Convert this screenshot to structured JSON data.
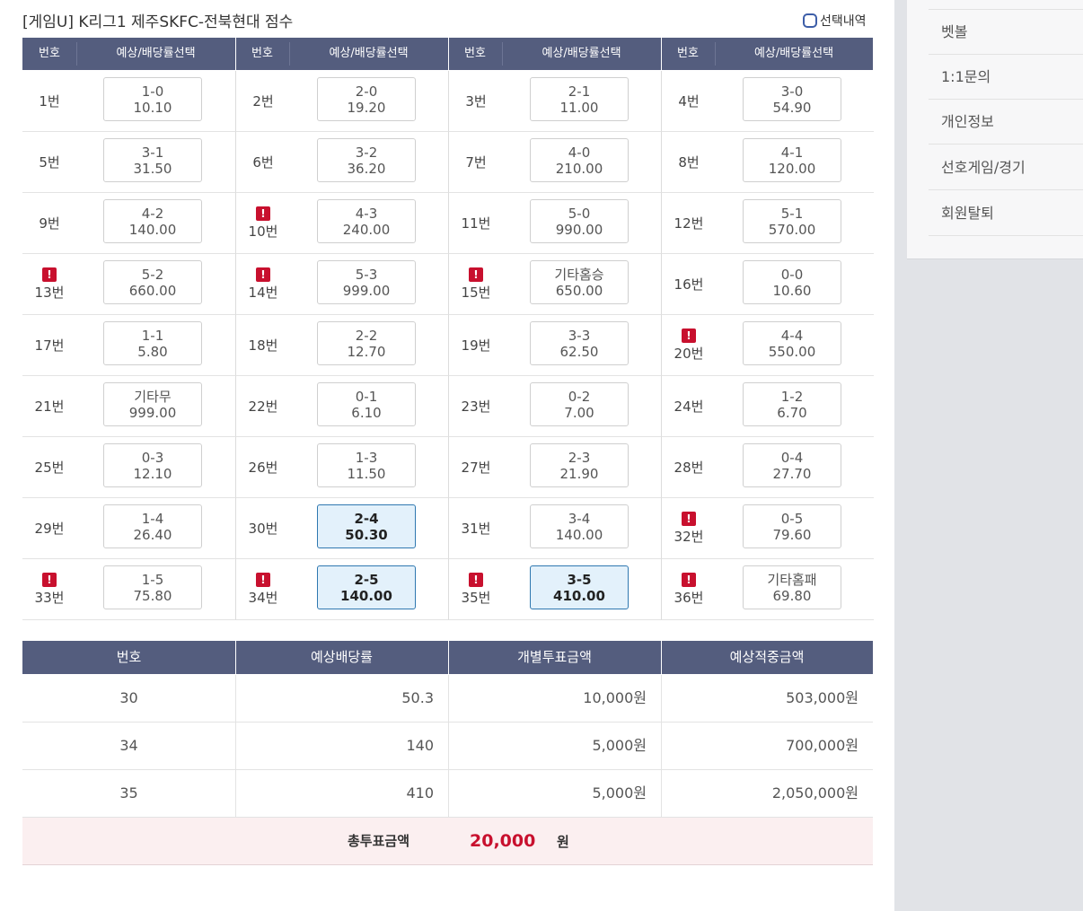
{
  "title": "[게임U] K리그1 제주SKFC-전북현대 점수",
  "select_history_label": "선택내역",
  "grid_headers": {
    "num": "번호",
    "pick": "예상/배당률선택"
  },
  "cells": [
    {
      "no": "1번",
      "score": "1-0",
      "odds": "10.10",
      "alert": false,
      "selected": false
    },
    {
      "no": "2번",
      "score": "2-0",
      "odds": "19.20",
      "alert": false,
      "selected": false
    },
    {
      "no": "3번",
      "score": "2-1",
      "odds": "11.00",
      "alert": false,
      "selected": false
    },
    {
      "no": "4번",
      "score": "3-0",
      "odds": "54.90",
      "alert": false,
      "selected": false
    },
    {
      "no": "5번",
      "score": "3-1",
      "odds": "31.50",
      "alert": false,
      "selected": false
    },
    {
      "no": "6번",
      "score": "3-2",
      "odds": "36.20",
      "alert": false,
      "selected": false
    },
    {
      "no": "7번",
      "score": "4-0",
      "odds": "210.00",
      "alert": false,
      "selected": false
    },
    {
      "no": "8번",
      "score": "4-1",
      "odds": "120.00",
      "alert": false,
      "selected": false
    },
    {
      "no": "9번",
      "score": "4-2",
      "odds": "140.00",
      "alert": false,
      "selected": false
    },
    {
      "no": "10번",
      "score": "4-3",
      "odds": "240.00",
      "alert": true,
      "selected": false
    },
    {
      "no": "11번",
      "score": "5-0",
      "odds": "990.00",
      "alert": false,
      "selected": false
    },
    {
      "no": "12번",
      "score": "5-1",
      "odds": "570.00",
      "alert": false,
      "selected": false
    },
    {
      "no": "13번",
      "score": "5-2",
      "odds": "660.00",
      "alert": true,
      "selected": false
    },
    {
      "no": "14번",
      "score": "5-3",
      "odds": "999.00",
      "alert": true,
      "selected": false
    },
    {
      "no": "15번",
      "score": "기타홈승",
      "odds": "650.00",
      "alert": true,
      "selected": false
    },
    {
      "no": "16번",
      "score": "0-0",
      "odds": "10.60",
      "alert": false,
      "selected": false
    },
    {
      "no": "17번",
      "score": "1-1",
      "odds": "5.80",
      "alert": false,
      "selected": false
    },
    {
      "no": "18번",
      "score": "2-2",
      "odds": "12.70",
      "alert": false,
      "selected": false
    },
    {
      "no": "19번",
      "score": "3-3",
      "odds": "62.50",
      "alert": false,
      "selected": false
    },
    {
      "no": "20번",
      "score": "4-4",
      "odds": "550.00",
      "alert": true,
      "selected": false
    },
    {
      "no": "21번",
      "score": "기타무",
      "odds": "999.00",
      "alert": false,
      "selected": false
    },
    {
      "no": "22번",
      "score": "0-1",
      "odds": "6.10",
      "alert": false,
      "selected": false
    },
    {
      "no": "23번",
      "score": "0-2",
      "odds": "7.00",
      "alert": false,
      "selected": false
    },
    {
      "no": "24번",
      "score": "1-2",
      "odds": "6.70",
      "alert": false,
      "selected": false
    },
    {
      "no": "25번",
      "score": "0-3",
      "odds": "12.10",
      "alert": false,
      "selected": false
    },
    {
      "no": "26번",
      "score": "1-3",
      "odds": "11.50",
      "alert": false,
      "selected": false
    },
    {
      "no": "27번",
      "score": "2-3",
      "odds": "21.90",
      "alert": false,
      "selected": false
    },
    {
      "no": "28번",
      "score": "0-4",
      "odds": "27.70",
      "alert": false,
      "selected": false
    },
    {
      "no": "29번",
      "score": "1-4",
      "odds": "26.40",
      "alert": false,
      "selected": false
    },
    {
      "no": "30번",
      "score": "2-4",
      "odds": "50.30",
      "alert": false,
      "selected": true
    },
    {
      "no": "31번",
      "score": "3-4",
      "odds": "140.00",
      "alert": false,
      "selected": false
    },
    {
      "no": "32번",
      "score": "0-5",
      "odds": "79.60",
      "alert": true,
      "selected": false
    },
    {
      "no": "33번",
      "score": "1-5",
      "odds": "75.80",
      "alert": true,
      "selected": false
    },
    {
      "no": "34번",
      "score": "2-5",
      "odds": "140.00",
      "alert": true,
      "selected": true
    },
    {
      "no": "35번",
      "score": "3-5",
      "odds": "410.00",
      "alert": true,
      "selected": true
    },
    {
      "no": "36번",
      "score": "기타홈패",
      "odds": "69.80",
      "alert": true,
      "selected": false
    }
  ],
  "bet_table": {
    "headers": [
      "번호",
      "예상배당률",
      "개별투표금액",
      "예상적중금액"
    ],
    "rows": [
      {
        "no": "30",
        "odds": "50.3",
        "stake": "10,000원",
        "payout": "503,000원"
      },
      {
        "no": "34",
        "odds": "140",
        "stake": "5,000원",
        "payout": "700,000원"
      },
      {
        "no": "35",
        "odds": "410",
        "stake": "5,000원",
        "payout": "2,050,000원"
      }
    ]
  },
  "total": {
    "label": "총투표금액",
    "amount": "20,000",
    "unit": "원"
  },
  "side_menu": [
    "벳볼",
    "1:1문의",
    "개인정보",
    "선호게임/경기",
    "회원탈퇴"
  ],
  "colors": {
    "header_bg": "#545d7e",
    "alert": "#c8102e",
    "selected_bg": "#e3f1fb",
    "selected_border": "#2f78b0",
    "total_bg": "#fbeff0"
  }
}
